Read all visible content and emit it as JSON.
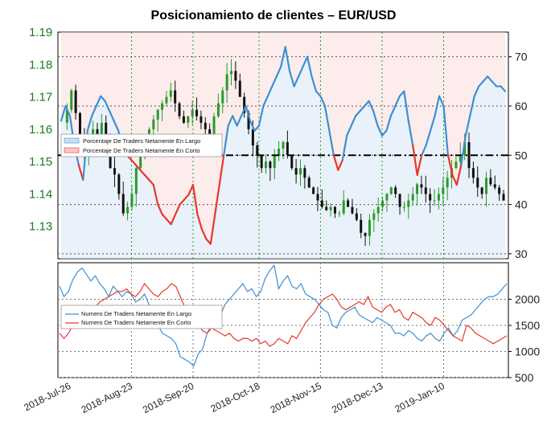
{
  "title": "Posicionamiento de clientes – EUR/USD",
  "colors": {
    "long": "#3d8fd1",
    "short": "#e8372c",
    "long_fill": "#dbe9f6",
    "short_fill": "#fbdcdc",
    "candle_up": "#2a9a2a",
    "candle_down": "#111111",
    "grid_v": "#2a9a2a",
    "grid_h": "#555555",
    "left_axis_text": "#1a7f1a"
  },
  "chart_data": [
    {
      "type": "candlestick",
      "panel": "price",
      "y_left_ticks": [
        "1.19",
        "1.18",
        "1.17",
        "1.16",
        "1.15",
        "1.14",
        "1.13"
      ],
      "y_left_range": [
        1.12,
        1.19
      ],
      "y_right_ticks": [
        "70",
        "60",
        "50",
        "40",
        "30"
      ],
      "y_right_range": [
        29,
        75
      ],
      "x_ticks": [
        "2018-Jul-26",
        "2018-Aug-23",
        "2018-Sep-20",
        "2018-Oct-18",
        "2018-Nov-15",
        "2018-Dec-13",
        "2019-Jan-10"
      ],
      "reference_line": 50,
      "legend": [
        "Porcentaje De Traders Netamente En Largo",
        "Porcentaje De Traders Netamente En Corto"
      ],
      "legend_position": "left",
      "price_path": [
        1.162,
        1.166,
        1.172,
        1.165,
        1.158,
        1.152,
        1.155,
        1.16,
        1.158,
        1.162,
        1.158,
        1.148,
        1.146,
        1.14,
        1.134,
        1.136,
        1.14,
        1.148,
        1.152,
        1.155,
        1.16,
        1.163,
        1.166,
        1.168,
        1.17,
        1.172,
        1.168,
        1.164,
        1.162,
        1.164,
        1.166,
        1.164,
        1.162,
        1.16,
        1.158,
        1.164,
        1.168,
        1.172,
        1.177,
        1.178,
        1.175,
        1.17,
        1.165,
        1.16,
        1.155,
        1.152,
        1.148,
        1.15,
        1.148,
        1.152,
        1.154,
        1.156,
        1.152,
        1.148,
        1.146,
        1.148,
        1.145,
        1.142,
        1.14,
        1.138,
        1.136,
        1.135,
        1.136,
        1.134,
        1.134,
        1.138,
        1.136,
        1.134,
        1.132,
        1.128,
        1.127,
        1.132,
        1.134,
        1.136,
        1.138,
        1.14,
        1.142,
        1.14,
        1.136,
        1.136,
        1.138,
        1.14,
        1.143,
        1.142,
        1.14,
        1.138,
        1.138,
        1.14,
        1.142,
        1.145,
        1.148,
        1.15,
        1.152,
        1.156,
        1.148,
        1.145,
        1.142,
        1.14,
        1.145,
        1.143,
        1.142,
        1.14,
        1.138
      ],
      "long_pct": [
        57,
        60,
        58,
        52,
        48,
        45,
        55,
        58,
        60,
        62,
        61,
        59,
        57,
        55,
        52,
        50,
        49,
        48,
        47,
        46,
        45,
        44,
        40,
        38,
        37,
        36,
        38,
        40,
        41,
        42,
        44,
        38,
        35,
        33,
        32,
        38,
        44,
        50,
        56,
        58,
        56,
        58,
        60,
        57,
        55,
        56,
        60,
        62,
        64,
        66,
        68,
        72,
        67,
        64,
        66,
        68,
        70,
        66,
        63,
        62,
        60,
        55,
        50,
        47,
        49,
        54,
        56,
        58,
        59,
        60,
        61,
        59,
        56,
        54,
        55,
        58,
        60,
        62,
        63,
        57,
        52,
        46,
        50,
        52,
        55,
        58,
        62,
        60,
        50,
        46,
        44,
        48,
        54,
        58,
        62,
        64,
        65,
        66,
        65,
        64,
        64,
        63
      ]
    },
    {
      "type": "line",
      "panel": "traders",
      "y_ticks": [
        "2000",
        "1500",
        "1000",
        "500"
      ],
      "y_range": [
        500,
        2700
      ],
      "legend_position": "left",
      "series": [
        {
          "name": "Numero De Traders Netamente En Largo",
          "color": "#3d8fd1",
          "values": [
            2250,
            2050,
            2150,
            2380,
            2520,
            2600,
            2480,
            2350,
            2450,
            2300,
            2200,
            2050,
            2250,
            2150,
            2050,
            2150,
            2100,
            1950,
            2000,
            2100,
            1900,
            1700,
            1500,
            1350,
            1300,
            1250,
            1150,
            900,
            850,
            800,
            720,
            950,
            1050,
            1350,
            1500,
            1550,
            1700,
            1900,
            2000,
            2100,
            2200,
            2300,
            2150,
            2200,
            2050,
            2150,
            2400,
            2550,
            2650,
            2200,
            2350,
            2450,
            2250,
            2200,
            2300,
            2100,
            2050,
            2000,
            1900,
            1800,
            1750,
            1500,
            1450,
            1650,
            1750,
            1800,
            1850,
            1700,
            1650,
            1600,
            1550,
            1650,
            1600,
            1550,
            1500,
            1350,
            1350,
            1300,
            1400,
            1350,
            1250,
            1200,
            1300,
            1350,
            1250,
            1200,
            1350,
            1450,
            1300,
            1400,
            1600,
            1650,
            1700,
            1800,
            1900,
            2000,
            2050,
            2050,
            2100,
            2200,
            2300
          ]
        },
        {
          "name": "Numero De Traders Netamente En Corto",
          "color": "#e8372c",
          "values": [
            1350,
            1250,
            1350,
            1500,
            1600,
            1650,
            1800,
            1750,
            1850,
            1950,
            2000,
            2050,
            2100,
            2150,
            2150,
            2200,
            2100,
            2050,
            2150,
            2300,
            2200,
            2100,
            2050,
            2150,
            2200,
            2300,
            2250,
            2050,
            1850,
            1750,
            1650,
            1500,
            1400,
            1350,
            1450,
            1400,
            1350,
            1300,
            1350,
            1250,
            1200,
            1250,
            1250,
            1200,
            1250,
            1150,
            1200,
            1100,
            1150,
            1250,
            1200,
            1150,
            1300,
            1250,
            1400,
            1550,
            1650,
            1750,
            1900,
            2000,
            2050,
            2100,
            2000,
            1850,
            1800,
            1850,
            1900,
            1950,
            1900,
            2050,
            1850,
            1800,
            1750,
            1850,
            1900,
            1750,
            1800,
            1650,
            1600,
            1750,
            1700,
            1650,
            1550,
            1500,
            1650,
            1600,
            1500,
            1400,
            1300,
            1250,
            1200,
            1500,
            1450,
            1350,
            1300,
            1250,
            1200,
            1150,
            1200,
            1250,
            1300
          ]
        }
      ]
    }
  ]
}
